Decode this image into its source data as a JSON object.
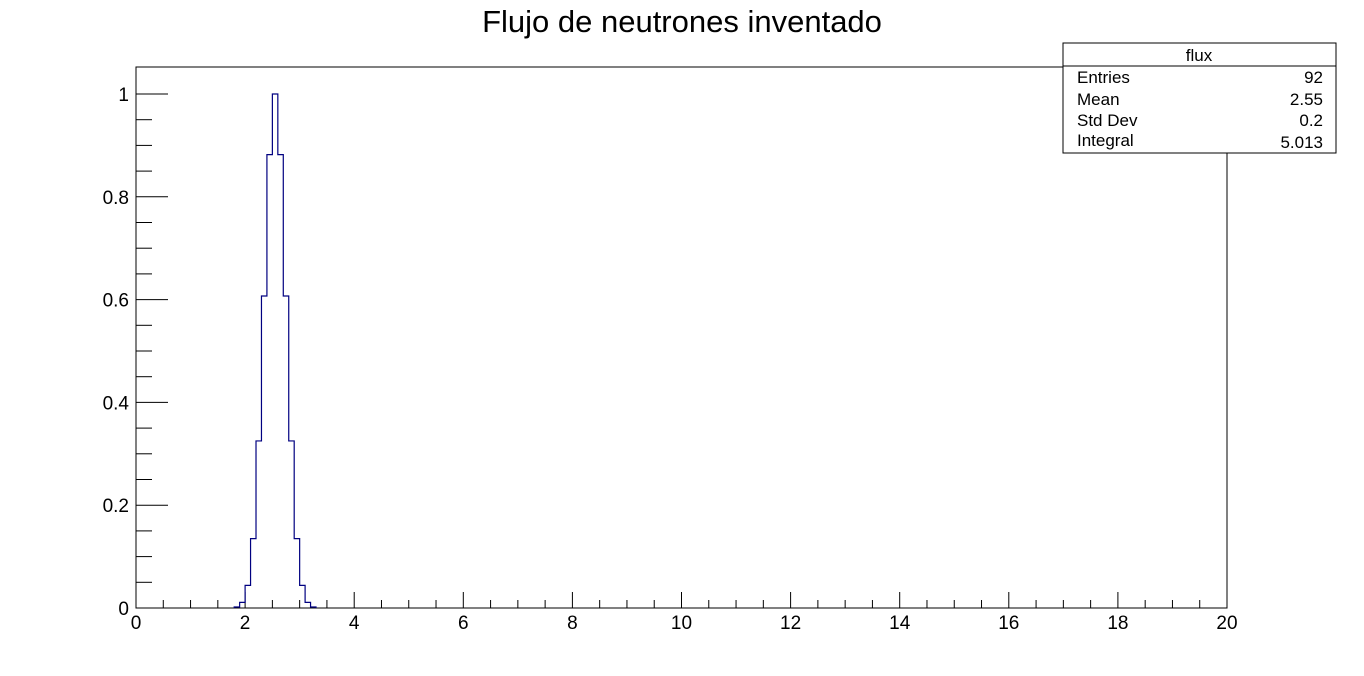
{
  "chart_data": {
    "type": "histogram",
    "title": "Flujo de neutrones inventado",
    "xlabel": "",
    "ylabel": "",
    "xlim": [
      0,
      20
    ],
    "ylim": [
      0,
      1.05
    ],
    "x_ticks": [
      "0",
      "2",
      "4",
      "6",
      "8",
      "10",
      "12",
      "14",
      "16",
      "18",
      "20"
    ],
    "y_ticks": [
      "0",
      "0.2",
      "0.4",
      "0.6",
      "0.8",
      "1"
    ],
    "bin_width": 0.1,
    "bins": [
      {
        "x0": 1.8,
        "value": 0.002
      },
      {
        "x0": 1.9,
        "value": 0.011
      },
      {
        "x0": 2.0,
        "value": 0.044
      },
      {
        "x0": 2.1,
        "value": 0.135
      },
      {
        "x0": 2.2,
        "value": 0.325
      },
      {
        "x0": 2.3,
        "value": 0.607
      },
      {
        "x0": 2.4,
        "value": 0.882
      },
      {
        "x0": 2.5,
        "value": 1.0
      },
      {
        "x0": 2.6,
        "value": 0.882
      },
      {
        "x0": 2.7,
        "value": 0.607
      },
      {
        "x0": 2.8,
        "value": 0.325
      },
      {
        "x0": 2.9,
        "value": 0.135
      },
      {
        "x0": 3.0,
        "value": 0.044
      },
      {
        "x0": 3.1,
        "value": 0.011
      },
      {
        "x0": 3.2,
        "value": 0.002
      }
    ],
    "line_color": "#000080",
    "grid": false,
    "legend_placement": "top-right"
  },
  "stats_box": {
    "name": "flux",
    "rows": [
      {
        "label": "Entries",
        "value": "92"
      },
      {
        "label": "Mean",
        "value": "2.55"
      },
      {
        "label": "Std Dev",
        "value": "0.2"
      },
      {
        "label": "Integral",
        "value": "5.013"
      }
    ]
  }
}
